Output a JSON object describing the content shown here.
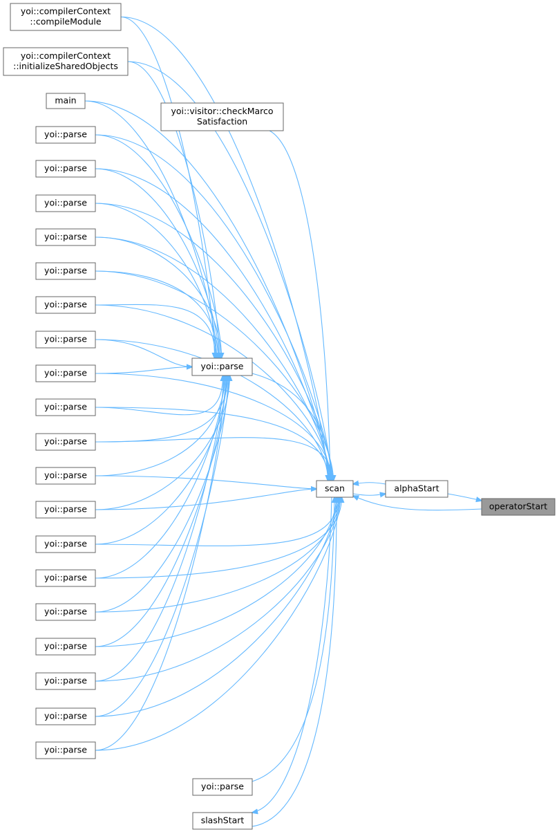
{
  "nodes": [
    {
      "lines": [
        "yoi::compilerContext",
        "::compileModule"
      ]
    },
    {
      "lines": [
        "yoi::compilerContext",
        "::initializeSharedObjects"
      ]
    },
    {
      "lines": [
        "main"
      ]
    },
    {
      "lines": [
        "yoi::parse"
      ]
    },
    {
      "lines": [
        "yoi::parse"
      ]
    },
    {
      "lines": [
        "yoi::parse"
      ]
    },
    {
      "lines": [
        "yoi::parse"
      ]
    },
    {
      "lines": [
        "yoi::parse"
      ]
    },
    {
      "lines": [
        "yoi::parse"
      ]
    },
    {
      "lines": [
        "yoi::parse"
      ]
    },
    {
      "lines": [
        "yoi::parse"
      ]
    },
    {
      "lines": [
        "yoi::parse"
      ]
    },
    {
      "lines": [
        "yoi::parse"
      ]
    },
    {
      "lines": [
        "yoi::parse"
      ]
    },
    {
      "lines": [
        "yoi::parse"
      ]
    },
    {
      "lines": [
        "yoi::parse"
      ]
    },
    {
      "lines": [
        "yoi::parse"
      ]
    },
    {
      "lines": [
        "yoi::parse"
      ]
    },
    {
      "lines": [
        "yoi::parse"
      ]
    },
    {
      "lines": [
        "yoi::parse"
      ]
    },
    {
      "lines": [
        "yoi::parse"
      ]
    },
    {
      "lines": [
        "yoi::parse"
      ]
    },
    {
      "lines": [
        "yoi::visitor::checkMarco",
        "Satisfaction"
      ]
    },
    {
      "lines": [
        "yoi::parse"
      ]
    },
    {
      "lines": [
        "scan"
      ]
    },
    {
      "lines": [
        "alphaStart"
      ]
    },
    {
      "lines": [
        "operatorStart"
      ]
    },
    {
      "lines": [
        "yoi::parse"
      ]
    },
    {
      "lines": [
        "slashStart"
      ]
    }
  ]
}
